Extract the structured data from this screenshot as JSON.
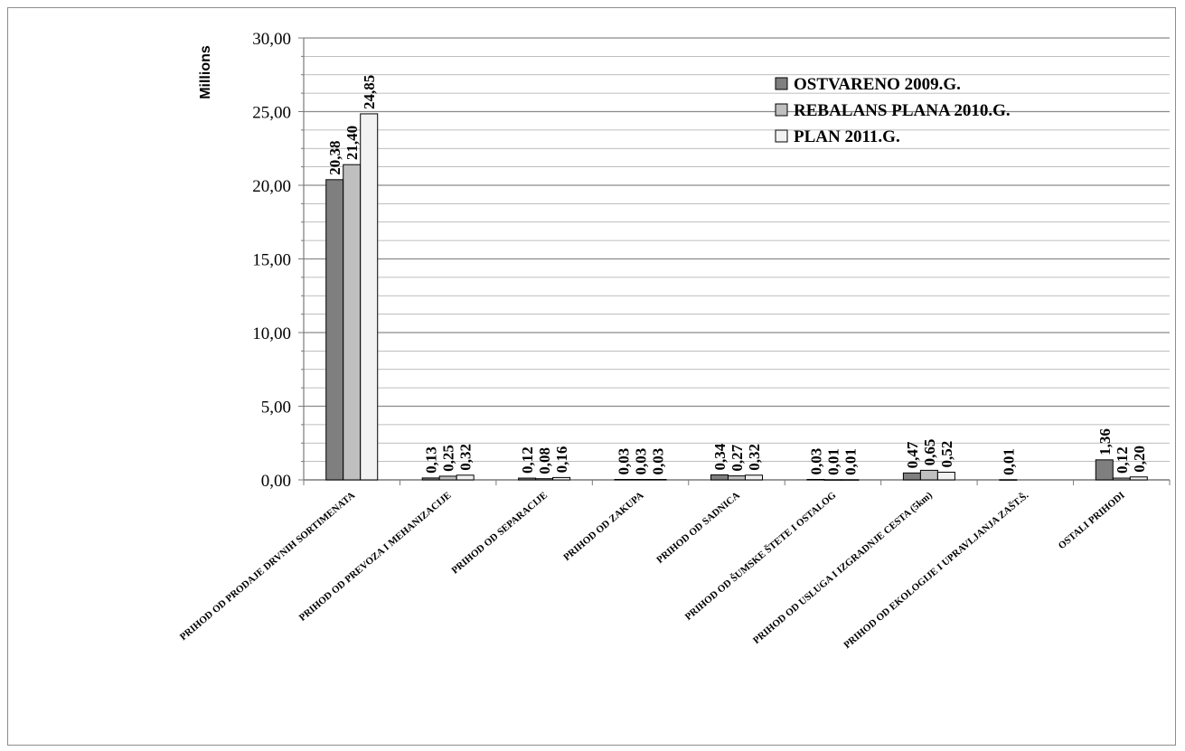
{
  "chart_data": {
    "type": "bar",
    "ylabel": "Millions",
    "ylim": [
      0,
      30
    ],
    "y_ticks": [
      "0,00",
      "5,00",
      "10,00",
      "15,00",
      "20,00",
      "25,00",
      "30,00"
    ],
    "grid": true,
    "legend_position": "top-right",
    "categories": [
      "PRIHOD OD PRODAJE DRVNIH SORTIMENATA",
      "PRIHOD OD PREVOZA I MEHANIZACIJE",
      "PRIHOD OD SEPARACIJE",
      "PRIHOD OD ZAKUPA",
      "PRIHOD OD SADNICA",
      "PRIHOD OD ŠUMSKE ŠTETE I OSTALOG",
      "PRIHOD OD USLUGA I IZGRADNJE CESTA (5km)",
      "PRIHOD OD EKOLOGIJE I UPRAVLJANJA ZAŠT.Š.",
      "OSTALI PRIHODI"
    ],
    "series": [
      {
        "name": "OSTVARENO 2009.G.",
        "color": "#7f7f7f",
        "values": [
          20.38,
          0.13,
          0.12,
          0.03,
          0.34,
          0.03,
          0.47,
          0.01,
          1.36
        ],
        "labels": [
          "20,38",
          "0,13",
          "0,12",
          "0,03",
          "0,34",
          "0,03",
          "0,47",
          "0,01",
          "1,36"
        ]
      },
      {
        "name": "REBALANS PLANA 2010.G.",
        "color": "#bfbfbf",
        "values": [
          21.4,
          0.25,
          0.08,
          0.03,
          0.27,
          0.01,
          0.65,
          null,
          0.12
        ],
        "labels": [
          "21,40",
          "0,25",
          "0,08",
          "0,03",
          "0,27",
          "0,01",
          "0,65",
          "",
          "0,12"
        ]
      },
      {
        "name": "PLAN 2011.G.",
        "color": "#f2f2f2",
        "values": [
          24.85,
          0.32,
          0.16,
          0.03,
          0.32,
          0.01,
          0.52,
          null,
          0.2
        ],
        "labels": [
          "24,85",
          "0,32",
          "0,16",
          "0,03",
          "0,32",
          "0,01",
          "0,52",
          "",
          "0,20"
        ]
      }
    ]
  }
}
